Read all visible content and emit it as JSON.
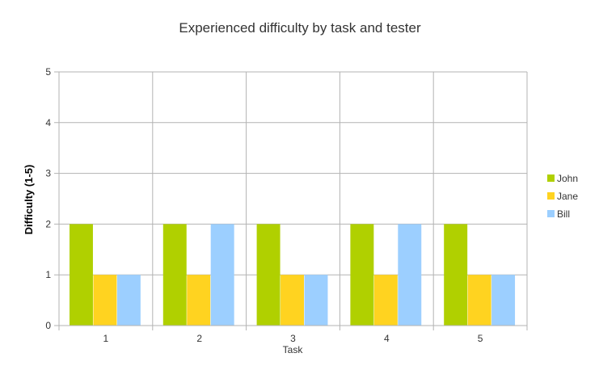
{
  "chart_data": {
    "type": "bar",
    "title": "Experienced difficulty by task and tester",
    "xlabel": "Task",
    "ylabel": "Difficulty (1-5)",
    "categories": [
      "1",
      "2",
      "3",
      "4",
      "5"
    ],
    "ylim": [
      0,
      5
    ],
    "yticks": [
      0,
      1,
      2,
      3,
      4,
      5
    ],
    "grid": true,
    "legend_position": "right",
    "series": [
      {
        "name": "John",
        "color": "#b0d000",
        "values": [
          2,
          2,
          2,
          2,
          2
        ]
      },
      {
        "name": "Jane",
        "color": "#ffd320",
        "values": [
          1,
          1,
          1,
          1,
          1
        ]
      },
      {
        "name": "Bill",
        "color": "#9ccfff",
        "values": [
          1,
          2,
          1,
          2,
          1
        ]
      }
    ]
  }
}
